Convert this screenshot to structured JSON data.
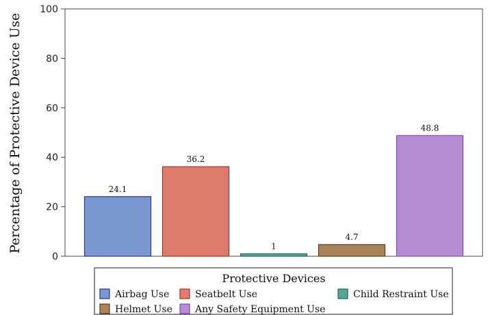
{
  "chart_data": {
    "type": "bar",
    "categories": [
      "Airbag Use",
      "Seatbelt Use",
      "Child Restraint Use",
      "Helmet Use",
      "Any Safety Equipment Use"
    ],
    "values": [
      24.1,
      36.2,
      1,
      4.7,
      48.8
    ],
    "data_labels": [
      "24.1",
      "36.2",
      "1",
      "4.7",
      "48.8"
    ],
    "title": "",
    "xlabel": "",
    "ylabel": "Percentage of Protective Device Use",
    "ylim": [
      0,
      100
    ],
    "yticks": [
      0,
      20,
      40,
      60,
      80,
      100
    ],
    "grid": false,
    "legend": {
      "title": "Protective Devices",
      "placement": "bottom"
    },
    "colors": {
      "fills": [
        "#7b97cf",
        "#df7b6d",
        "#53a89b",
        "#a9825a",
        "#b68bcf"
      ],
      "strokes": [
        "#2d2fb3",
        "#a3352b",
        "#21655c",
        "#5d3c1b",
        "#7d4bc0"
      ]
    }
  }
}
